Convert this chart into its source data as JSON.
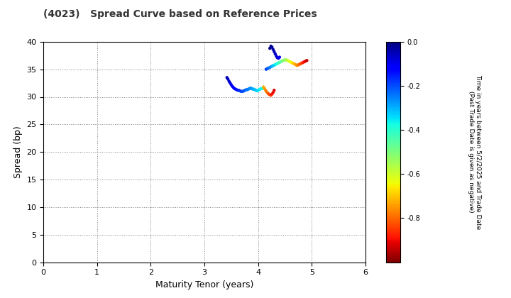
{
  "title": "(4023)   Spread Curve based on Reference Prices",
  "xlabel": "Maturity Tenor (years)",
  "ylabel": "Spread (bp)",
  "colorbar_label_line1": "Time in years between 5/2/2025 and Trade Date",
  "colorbar_label_line2": "(Past Trade Date is given as negative)",
  "xlim": [
    0,
    6
  ],
  "ylim": [
    0,
    40
  ],
  "xticks": [
    0,
    1,
    2,
    3,
    4,
    5,
    6
  ],
  "yticks": [
    0,
    5,
    10,
    15,
    20,
    25,
    30,
    35,
    40
  ],
  "cmap_vmin": -1.0,
  "cmap_vmax": 0.0,
  "cmap_name": "jet_r",
  "cluster1": {
    "maturity": [
      3.42,
      3.44,
      3.46,
      3.48,
      3.5,
      3.52,
      3.54,
      3.56,
      3.58,
      3.6,
      3.62,
      3.64,
      3.66,
      3.68,
      3.7,
      3.72,
      3.74,
      3.76,
      3.78,
      3.8,
      3.82,
      3.84,
      3.86,
      3.88,
      3.9,
      3.92,
      3.94,
      3.96,
      3.98,
      4.0,
      4.02,
      4.04,
      4.06,
      4.08,
      4.1
    ],
    "spread": [
      33.5,
      33.2,
      32.8,
      32.5,
      32.2,
      31.9,
      31.7,
      31.5,
      31.4,
      31.3,
      31.2,
      31.2,
      31.1,
      31.0,
      31.0,
      31.0,
      31.1,
      31.2,
      31.3,
      31.3,
      31.4,
      31.5,
      31.6,
      31.5,
      31.4,
      31.4,
      31.3,
      31.2,
      31.1,
      31.2,
      31.3,
      31.4,
      31.5,
      31.5,
      31.6
    ],
    "color_val": [
      -0.05,
      -0.06,
      -0.07,
      -0.08,
      -0.09,
      -0.1,
      -0.11,
      -0.12,
      -0.13,
      -0.14,
      -0.15,
      -0.16,
      -0.17,
      -0.18,
      -0.19,
      -0.2,
      -0.21,
      -0.22,
      -0.23,
      -0.24,
      -0.25,
      -0.26,
      -0.27,
      -0.28,
      -0.29,
      -0.3,
      -0.31,
      -0.32,
      -0.33,
      -0.34,
      -0.35,
      -0.36,
      -0.37,
      -0.38,
      -0.39
    ]
  },
  "cluster2": {
    "maturity": [
      4.15,
      4.17,
      4.19,
      4.21,
      4.23,
      4.25,
      4.27,
      4.29,
      4.31,
      4.33,
      4.35,
      4.37,
      4.39,
      4.41,
      4.43,
      4.45,
      4.47,
      4.49,
      4.51,
      4.53,
      4.55,
      4.57,
      4.59,
      4.61,
      4.63,
      4.65,
      4.67,
      4.69,
      4.71,
      4.73,
      4.75,
      4.77,
      4.79,
      4.81,
      4.83,
      4.85,
      4.87,
      4.89,
      4.91
    ],
    "spread": [
      35.0,
      35.1,
      35.2,
      35.3,
      35.4,
      35.5,
      35.6,
      35.7,
      35.8,
      35.9,
      36.0,
      36.1,
      36.2,
      36.3,
      36.4,
      36.5,
      36.6,
      36.7,
      36.7,
      36.7,
      36.6,
      36.5,
      36.4,
      36.3,
      36.2,
      36.1,
      36.0,
      35.9,
      35.8,
      35.7,
      35.8,
      35.9,
      36.0,
      36.1,
      36.2,
      36.3,
      36.4,
      36.5,
      36.6
    ],
    "color_val": [
      -0.18,
      -0.2,
      -0.22,
      -0.24,
      -0.26,
      -0.28,
      -0.3,
      -0.32,
      -0.34,
      -0.36,
      -0.38,
      -0.4,
      -0.42,
      -0.44,
      -0.46,
      -0.48,
      -0.5,
      -0.52,
      -0.54,
      -0.56,
      -0.58,
      -0.6,
      -0.62,
      -0.64,
      -0.66,
      -0.68,
      -0.7,
      -0.72,
      -0.74,
      -0.76,
      -0.78,
      -0.8,
      -0.82,
      -0.84,
      -0.86,
      -0.88,
      -0.9,
      -0.92,
      -0.94
    ]
  },
  "cluster3_red": {
    "maturity": [
      4.22,
      4.24,
      4.26,
      4.28,
      4.3,
      4.32,
      4.34,
      4.36,
      4.38,
      4.4
    ],
    "spread": [
      38.8,
      39.2,
      39.0,
      38.6,
      38.2,
      37.8,
      37.4,
      37.1,
      37.0,
      37.2
    ],
    "color_val": [
      -0.01,
      -0.02,
      -0.03,
      -0.04,
      -0.05,
      -0.06,
      -0.07,
      -0.08,
      -0.09,
      -0.1
    ]
  },
  "cluster4_purple": {
    "maturity": [
      4.1,
      4.12,
      4.14,
      4.16,
      4.18,
      4.2,
      4.22,
      4.24,
      4.26,
      4.28,
      4.3
    ],
    "spread": [
      31.8,
      31.5,
      31.2,
      30.9,
      30.7,
      30.5,
      30.4,
      30.3,
      30.5,
      30.8,
      31.2
    ],
    "color_val": [
      -0.72,
      -0.74,
      -0.76,
      -0.78,
      -0.8,
      -0.82,
      -0.84,
      -0.86,
      -0.88,
      -0.9,
      -0.92
    ]
  }
}
